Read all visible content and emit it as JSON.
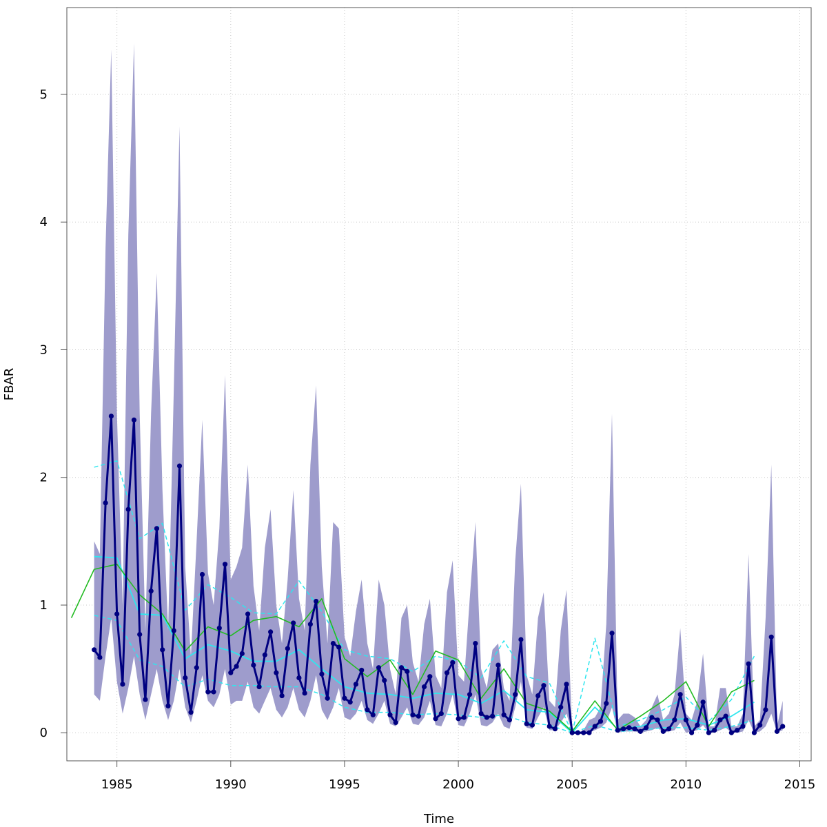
{
  "chart_data": {
    "type": "line",
    "title": "",
    "xlabel": "Time",
    "ylabel": "FBAR",
    "xlim": [
      1982.8,
      2015.5
    ],
    "ylim": [
      -0.22,
      5.68
    ],
    "grid": true,
    "x_ticks": [
      1985,
      1990,
      1995,
      2000,
      2005,
      2010,
      2015
    ],
    "y_ticks": [
      0,
      1,
      2,
      3,
      4,
      5
    ],
    "colors": {
      "band": "#9e9ccc",
      "main": "#000080",
      "annual": "#22bb22",
      "median": "#2ee6ee",
      "bounds": "#2ee6ee",
      "grid": "#c8c8c8"
    },
    "series": [
      {
        "role": "uncertainty-band",
        "x": [
          1984.0,
          1984.25,
          1984.5,
          1984.75,
          1985.0,
          1985.25,
          1985.5,
          1985.75,
          1986.0,
          1986.25,
          1986.5,
          1986.75,
          1987.0,
          1987.25,
          1987.5,
          1987.75,
          1988.0,
          1988.25,
          1988.5,
          1988.75,
          1989.0,
          1989.25,
          1989.5,
          1989.75,
          1990.0,
          1990.25,
          1990.5,
          1990.75,
          1991.0,
          1991.25,
          1991.5,
          1991.75,
          1992.0,
          1992.25,
          1992.5,
          1992.75,
          1993.0,
          1993.25,
          1993.5,
          1993.75,
          1994.0,
          1994.25,
          1994.5,
          1994.75,
          1995.0,
          1995.25,
          1995.5,
          1995.75,
          1996.0,
          1996.25,
          1996.5,
          1996.75,
          1997.0,
          1997.25,
          1997.5,
          1997.75,
          1998.0,
          1998.25,
          1998.5,
          1998.75,
          1999.0,
          1999.25,
          1999.5,
          1999.75,
          2000.0,
          2000.25,
          2000.5,
          2000.75,
          2001.0,
          2001.25,
          2001.5,
          2001.75,
          2002.0,
          2002.25,
          2002.5,
          2002.75,
          2003.0,
          2003.25,
          2003.5,
          2003.75,
          2004.0,
          2004.25,
          2004.5,
          2004.75,
          2005.0,
          2005.25,
          2005.5,
          2005.75,
          2006.0,
          2006.25,
          2006.5,
          2006.75,
          2007.0,
          2007.25,
          2007.5,
          2007.75,
          2008.0,
          2008.25,
          2008.5,
          2008.75,
          2009.0,
          2009.25,
          2009.5,
          2009.75,
          2010.0,
          2010.25,
          2010.5,
          2010.75,
          2011.0,
          2011.25,
          2011.5,
          2011.75,
          2012.0,
          2012.25,
          2012.5,
          2012.75,
          2013.0,
          2013.25,
          2013.5,
          2013.75,
          2014.0,
          2014.25
        ],
        "upper": [
          1.5,
          1.4,
          3.8,
          5.35,
          2.5,
          1.0,
          3.9,
          5.4,
          2.5,
          0.8,
          2.5,
          3.6,
          1.9,
          0.8,
          2.7,
          4.75,
          1.3,
          0.6,
          1.5,
          2.45,
          1.25,
          1.0,
          1.6,
          2.8,
          1.2,
          1.3,
          1.45,
          2.1,
          1.15,
          0.8,
          1.45,
          1.75,
          1.0,
          0.7,
          1.2,
          1.9,
          1.05,
          0.8,
          2.1,
          2.72,
          1.3,
          0.7,
          1.65,
          1.6,
          0.75,
          0.6,
          0.95,
          1.2,
          0.7,
          0.5,
          1.2,
          1.0,
          0.5,
          0.3,
          0.9,
          1.0,
          0.55,
          0.4,
          0.85,
          1.05,
          0.45,
          0.35,
          1.1,
          1.35,
          0.45,
          0.4,
          1.05,
          1.65,
          0.5,
          0.35,
          0.65,
          0.7,
          0.35,
          0.25,
          1.35,
          1.95,
          0.45,
          0.3,
          0.9,
          1.1,
          0.25,
          0.2,
          0.8,
          1.12,
          0.02,
          0.0,
          0.02,
          0.1,
          0.12,
          0.2,
          0.85,
          2.5,
          0.1,
          0.15,
          0.15,
          0.12,
          0.05,
          0.1,
          0.2,
          0.3,
          0.1,
          0.15,
          0.3,
          0.82,
          0.15,
          0.1,
          0.25,
          0.62,
          0.05,
          0.05,
          0.35,
          0.35,
          0.05,
          0.05,
          0.15,
          1.4,
          0.05,
          0.1,
          0.9,
          2.1,
          0.05,
          0.25
        ],
        "lower": [
          0.3,
          0.25,
          0.6,
          0.9,
          0.4,
          0.15,
          0.35,
          0.6,
          0.3,
          0.1,
          0.3,
          0.5,
          0.25,
          0.1,
          0.25,
          0.5,
          0.2,
          0.08,
          0.25,
          0.45,
          0.25,
          0.2,
          0.3,
          0.5,
          0.22,
          0.25,
          0.25,
          0.4,
          0.2,
          0.15,
          0.25,
          0.35,
          0.18,
          0.12,
          0.2,
          0.35,
          0.18,
          0.12,
          0.25,
          0.45,
          0.18,
          0.1,
          0.2,
          0.35,
          0.12,
          0.1,
          0.15,
          0.25,
          0.1,
          0.07,
          0.15,
          0.25,
          0.07,
          0.05,
          0.12,
          0.2,
          0.07,
          0.06,
          0.12,
          0.25,
          0.06,
          0.05,
          0.15,
          0.3,
          0.06,
          0.05,
          0.15,
          0.3,
          0.06,
          0.05,
          0.08,
          0.15,
          0.05,
          0.03,
          0.2,
          0.4,
          0.04,
          0.03,
          0.12,
          0.2,
          0.02,
          0.02,
          0.08,
          0.15,
          0.0,
          0.0,
          0.0,
          0.0,
          0.02,
          0.04,
          0.08,
          0.2,
          0.0,
          0.01,
          0.01,
          0.01,
          0.0,
          0.01,
          0.02,
          0.04,
          0.0,
          0.01,
          0.02,
          0.08,
          0.0,
          0.01,
          0.02,
          0.06,
          0.0,
          0.0,
          0.02,
          0.04,
          0.0,
          0.0,
          0.01,
          0.1,
          0.0,
          0.01,
          0.05,
          0.15,
          0.0,
          0.02
        ]
      },
      {
        "role": "quarterly-estimate",
        "x": [
          1984.0,
          1984.25,
          1984.5,
          1984.75,
          1985.0,
          1985.25,
          1985.5,
          1985.75,
          1986.0,
          1986.25,
          1986.5,
          1986.75,
          1987.0,
          1987.25,
          1987.5,
          1987.75,
          1988.0,
          1988.25,
          1988.5,
          1988.75,
          1989.0,
          1989.25,
          1989.5,
          1989.75,
          1990.0,
          1990.25,
          1990.5,
          1990.75,
          1991.0,
          1991.25,
          1991.5,
          1991.75,
          1992.0,
          1992.25,
          1992.5,
          1992.75,
          1993.0,
          1993.25,
          1993.5,
          1993.75,
          1994.0,
          1994.25,
          1994.5,
          1994.75,
          1995.0,
          1995.25,
          1995.5,
          1995.75,
          1996.0,
          1996.25,
          1996.5,
          1996.75,
          1997.0,
          1997.25,
          1997.5,
          1997.75,
          1998.0,
          1998.25,
          1998.5,
          1998.75,
          1999.0,
          1999.25,
          1999.5,
          1999.75,
          2000.0,
          2000.25,
          2000.5,
          2000.75,
          2001.0,
          2001.25,
          2001.5,
          2001.75,
          2002.0,
          2002.25,
          2002.5,
          2002.75,
          2003.0,
          2003.25,
          2003.5,
          2003.75,
          2004.0,
          2004.25,
          2004.5,
          2004.75,
          2005.0,
          2005.25,
          2005.5,
          2005.75,
          2006.0,
          2006.25,
          2006.5,
          2006.75,
          2007.0,
          2007.25,
          2007.5,
          2007.75,
          2008.0,
          2008.25,
          2008.5,
          2008.75,
          2009.0,
          2009.25,
          2009.5,
          2009.75,
          2010.0,
          2010.25,
          2010.5,
          2010.75,
          2011.0,
          2011.25,
          2011.5,
          2011.75,
          2012.0,
          2012.25,
          2012.5,
          2012.75,
          2013.0,
          2013.25,
          2013.5,
          2013.75,
          2014.0,
          2014.25
        ],
        "values": [
          0.65,
          0.59,
          1.8,
          2.48,
          0.93,
          0.38,
          1.75,
          2.45,
          0.77,
          0.26,
          1.11,
          1.6,
          0.65,
          0.21,
          0.8,
          2.09,
          0.43,
          0.16,
          0.51,
          1.24,
          0.32,
          0.32,
          0.82,
          1.32,
          0.47,
          0.52,
          0.62,
          0.93,
          0.53,
          0.36,
          0.61,
          0.79,
          0.47,
          0.29,
          0.66,
          0.86,
          0.43,
          0.31,
          0.85,
          1.03,
          0.46,
          0.27,
          0.7,
          0.67,
          0.27,
          0.24,
          0.38,
          0.49,
          0.18,
          0.14,
          0.51,
          0.41,
          0.14,
          0.08,
          0.51,
          0.48,
          0.14,
          0.13,
          0.36,
          0.44,
          0.11,
          0.15,
          0.47,
          0.55,
          0.11,
          0.12,
          0.3,
          0.7,
          0.15,
          0.12,
          0.13,
          0.53,
          0.14,
          0.1,
          0.3,
          0.73,
          0.07,
          0.06,
          0.29,
          0.37,
          0.05,
          0.03,
          0.2,
          0.38,
          0.0,
          0.0,
          0.0,
          0.0,
          0.05,
          0.09,
          0.23,
          0.78,
          0.02,
          0.03,
          0.04,
          0.03,
          0.01,
          0.04,
          0.12,
          0.1,
          0.01,
          0.03,
          0.1,
          0.3,
          0.1,
          0.0,
          0.06,
          0.24,
          0.0,
          0.02,
          0.1,
          0.13,
          0.0,
          0.02,
          0.05,
          0.54,
          0.0,
          0.06,
          0.18,
          0.75,
          0.01,
          0.05
        ]
      },
      {
        "role": "annual",
        "x": [
          1983,
          1984,
          1985,
          1986,
          1987,
          1988,
          1989,
          1990,
          1991,
          1992,
          1993,
          1994,
          1995,
          1996,
          1997,
          1998,
          1999,
          2000,
          2001,
          2002,
          2003,
          2004,
          2005,
          2006,
          2007,
          2008,
          2009,
          2010,
          2011,
          2012,
          2013
        ],
        "values": [
          0.9,
          1.28,
          1.32,
          1.08,
          0.93,
          0.64,
          0.83,
          0.76,
          0.88,
          0.91,
          0.83,
          1.05,
          0.58,
          0.44,
          0.57,
          0.3,
          0.64,
          0.57,
          0.27,
          0.5,
          0.23,
          0.17,
          0.01,
          0.25,
          0.02,
          0.13,
          0.25,
          0.4,
          0.05,
          0.32,
          0.41
        ]
      },
      {
        "role": "annual-median",
        "x": [
          1984,
          1985,
          1986,
          1987,
          1988,
          1989,
          1990,
          1991,
          1992,
          1993,
          1994,
          1995,
          1996,
          1997,
          1998,
          1999,
          2000,
          2001,
          2002,
          2003,
          2004,
          2005,
          2006,
          2007,
          2008,
          2009,
          2010,
          2011,
          2012,
          2013
        ],
        "values": [
          1.38,
          1.37,
          0.93,
          0.92,
          0.58,
          0.69,
          0.64,
          0.56,
          0.56,
          0.65,
          0.5,
          0.36,
          0.31,
          0.3,
          0.27,
          0.31,
          0.3,
          0.23,
          0.33,
          0.18,
          0.16,
          0.0,
          0.2,
          0.03,
          0.05,
          0.1,
          0.11,
          0.06,
          0.13,
          0.24
        ]
      },
      {
        "role": "annual-upper-bound",
        "x": [
          1984,
          1985,
          1986,
          1987,
          1988,
          1989,
          1990,
          1991,
          1992,
          1993,
          1994,
          1995,
          1996,
          1997,
          1998,
          1999,
          2000,
          2001,
          2002,
          2003,
          2004,
          2005,
          2006,
          2007,
          2008,
          2009,
          2010,
          2011,
          2012,
          2013
        ],
        "values": [
          2.08,
          2.13,
          1.52,
          1.64,
          0.96,
          1.16,
          1.06,
          0.94,
          0.93,
          1.19,
          0.95,
          0.65,
          0.6,
          0.58,
          0.48,
          0.6,
          0.56,
          0.43,
          0.72,
          0.44,
          0.39,
          0.0,
          0.74,
          0.05,
          0.1,
          0.18,
          0.28,
          0.09,
          0.26,
          0.6
        ]
      },
      {
        "role": "annual-lower-bound",
        "x": [
          1984,
          1985,
          1986,
          1987,
          1988,
          1989,
          1990,
          1991,
          1992,
          1993,
          1994,
          1995,
          1996,
          1997,
          1998,
          1999,
          2000,
          2001,
          2002,
          2003,
          2004,
          2005,
          2006,
          2007,
          2008,
          2009,
          2010,
          2011,
          2012,
          2013
        ],
        "values": [
          0.92,
          0.88,
          0.57,
          0.52,
          0.36,
          0.42,
          0.37,
          0.37,
          0.36,
          0.36,
          0.3,
          0.2,
          0.16,
          0.16,
          0.14,
          0.15,
          0.14,
          0.12,
          0.14,
          0.08,
          0.06,
          0.0,
          0.06,
          0.01,
          0.02,
          0.04,
          0.04,
          0.02,
          0.05,
          0.1
        ]
      }
    ]
  }
}
